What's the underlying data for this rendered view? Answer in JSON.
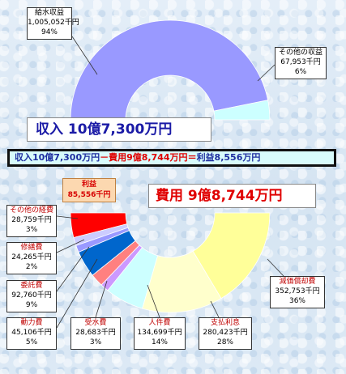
{
  "headlines": {
    "revenue_total": "収入 10億7,300万円",
    "cost_total": "費用 9億8,744万円",
    "formula": {
      "revenue": "収入10億7,300万円",
      "minus": "－",
      "cost": "費用9億8,744万円",
      "equals": "＝",
      "profit": "利益8,556万円"
    }
  },
  "chart_data": [
    {
      "type": "pie",
      "subtype": "half-donut",
      "title": "収入 10億7,300万円",
      "unit": "千円",
      "slices": [
        {
          "name": "給水収益",
          "value": 1005052,
          "value_label": "1,005,052千円",
          "percent_label": "94%",
          "color": "#9999ff"
        },
        {
          "name": "その他の収益",
          "value": 67953,
          "value_label": "67,953千円",
          "percent_label": "6%",
          "color": "#ccffff"
        }
      ]
    },
    {
      "type": "pie",
      "subtype": "half-donut",
      "title": "費用 9億8,744万円",
      "unit": "千円",
      "slices": [
        {
          "name": "利益",
          "value": 85556,
          "value_label": "85,556千円",
          "percent_label": "",
          "color": "#ff0000"
        },
        {
          "name": "その他の経費",
          "value": 28759,
          "value_label": "28,759千円",
          "percent_label": "3%",
          "color": "#ccccff"
        },
        {
          "name": "修繕費",
          "value": 24265,
          "value_label": "24,265千円",
          "percent_label": "2%",
          "color": "#9999ff"
        },
        {
          "name": "委託費",
          "value": 92760,
          "value_label": "92,760千円",
          "percent_label": "9%",
          "color": "#0066cc"
        },
        {
          "name": "動力費",
          "value": 45106,
          "value_label": "45,106千円",
          "percent_label": "5%",
          "color": "#ff8080"
        },
        {
          "name": "受水費",
          "value": 28683,
          "value_label": "28,683千円",
          "percent_label": "3%",
          "color": "#cc99ff"
        },
        {
          "name": "人件費",
          "value": 134699,
          "value_label": "134,699千円",
          "percent_label": "14%",
          "color": "#ccffff"
        },
        {
          "name": "支払利息",
          "value": 280423,
          "value_label": "280,423千円",
          "percent_label": "28%",
          "color": "#ffffcc"
        },
        {
          "name": "減価償却費",
          "value": 352753,
          "value_label": "352,753千円",
          "percent_label": "36%",
          "color": "#ffff99"
        }
      ]
    }
  ]
}
